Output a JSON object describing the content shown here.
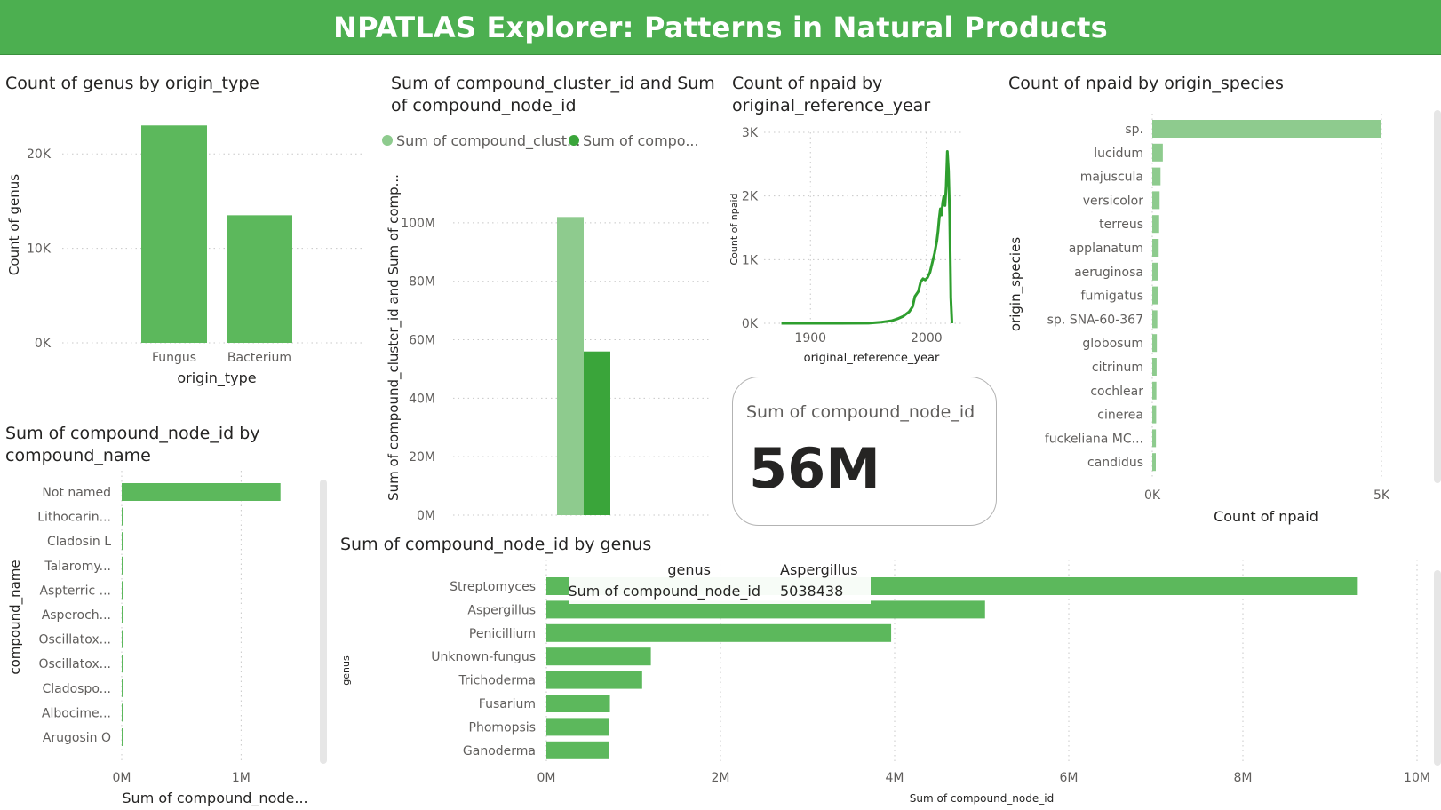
{
  "report": {
    "title": "NPATLAS Explorer: Patterns in Natural Products",
    "theme": {
      "banner": "#4caf50",
      "bar": "#5cb85c",
      "light": "#8ecb8e",
      "dark": "#3aa53a",
      "line": "#2e9e2e"
    }
  },
  "chart_data": [
    {
      "id": "genus_by_origin_type",
      "type": "bar",
      "title": "Count of genus by origin_type",
      "xlabel": "origin_type",
      "ylabel": "Count of genus",
      "categories": [
        "Fungus",
        "Bacterium"
      ],
      "values": [
        23000,
        13500
      ],
      "ylim": [
        0,
        25000
      ],
      "ticks": [
        0,
        10000,
        20000
      ],
      "tick_labels": [
        "0K",
        "10K",
        "20K"
      ],
      "grid": true
    },
    {
      "id": "cluster_and_node_sums",
      "type": "bar",
      "title": "Sum of compound_cluster_id and Sum of compound_node_id",
      "ylabel": "Sum of compound_cluster_id and Sum of comp...",
      "legend": "top",
      "series": [
        {
          "name": "Sum of compound_clust...",
          "values": [
            102000000
          ],
          "color": "#8ecb8e"
        },
        {
          "name": "Sum of compo...",
          "values": [
            56000000
          ],
          "color": "#3aa53a"
        }
      ],
      "ylim": [
        0,
        110000000
      ],
      "ticks": [
        0,
        20000000,
        40000000,
        60000000,
        80000000,
        100000000
      ],
      "tick_labels": [
        "0M",
        "20M",
        "40M",
        "60M",
        "80M",
        "100M"
      ],
      "grid": true
    },
    {
      "id": "npaid_by_year",
      "type": "line",
      "title": "Count of npaid by original_reference_year",
      "xlabel": "original_reference_year",
      "ylabel": "Count of npaid",
      "x": [
        1875,
        1900,
        1925,
        1950,
        1960,
        1970,
        1975,
        1980,
        1985,
        1988,
        1990,
        1993,
        1995,
        1997,
        1999,
        2001,
        2003,
        2005,
        2007,
        2009,
        2010,
        2011,
        2012,
        2013,
        2014,
        2015,
        2016,
        2017,
        2018,
        2019,
        2020,
        2021,
        2022
      ],
      "values": [
        0,
        0,
        0,
        2,
        15,
        40,
        70,
        110,
        180,
        260,
        420,
        500,
        650,
        700,
        680,
        720,
        800,
        950,
        1100,
        1300,
        1450,
        1650,
        1800,
        1700,
        1900,
        2000,
        1850,
        2150,
        2700,
        2400,
        1700,
        400,
        0
      ],
      "xlim": [
        1860,
        2030
      ],
      "ylim": [
        0,
        3000
      ],
      "xticks": [
        1900,
        2000
      ],
      "ticks": [
        0,
        1000,
        2000,
        3000
      ],
      "tick_labels": [
        "0K",
        "1K",
        "2K",
        "3K"
      ],
      "grid": true
    },
    {
      "id": "npaid_by_species",
      "type": "bar",
      "orientation": "horizontal",
      "title": "Count of npaid by origin_species",
      "xlabel": "Count of npaid",
      "ylabel": "origin_species",
      "categories": [
        "sp.",
        "lucidum",
        "majuscula",
        "versicolor",
        "terreus",
        "applanatum",
        "aeruginosa",
        "fumigatus",
        "sp. SNA-60-367",
        "globosum",
        "citrinum",
        "cochlear",
        "cinerea",
        "fuckeliana MC...",
        "candidus"
      ],
      "values": [
        5000,
        230,
        180,
        160,
        150,
        140,
        130,
        120,
        110,
        100,
        95,
        90,
        85,
        80,
        75
      ],
      "xlim": [
        0,
        5000
      ],
      "ticks": [
        0,
        5000
      ],
      "tick_labels": [
        "0K",
        "5K"
      ],
      "grid": true
    },
    {
      "id": "node_by_compound_name",
      "type": "bar",
      "orientation": "horizontal",
      "title": "Sum of compound_node_id by compound_name",
      "xlabel": "Sum of compound_node...",
      "ylabel": "compound_name",
      "categories": [
        "Not named",
        "Lithocarin...",
        "Cladosin L",
        "Talaromy...",
        "Aspterric ...",
        "Asperoch...",
        "Oscillatox...",
        "Oscillatox...",
        "Cladospo...",
        "Albocime...",
        "Arugosin O"
      ],
      "values": [
        1330000,
        12000,
        12000,
        12000,
        12000,
        12000,
        12000,
        12000,
        12000,
        12000,
        12000
      ],
      "xlim": [
        0,
        1600000
      ],
      "ticks": [
        0,
        1000000
      ],
      "tick_labels": [
        "0M",
        "1M"
      ],
      "grid": true
    },
    {
      "id": "node_by_genus",
      "type": "bar",
      "orientation": "horizontal",
      "title": "Sum of compound_node_id by genus",
      "xlabel": "Sum of compound_node_id",
      "ylabel": "genus",
      "categories": [
        "Streptomyces",
        "Aspergillus",
        "Penicillium",
        "Unknown-fungus",
        "Trichoderma",
        "Fusarium",
        "Phomopsis",
        "Ganoderma"
      ],
      "values": [
        9320000,
        5038438,
        3960000,
        1200000,
        1100000,
        730000,
        720000,
        720000
      ],
      "xlim": [
        0,
        10000000
      ],
      "ticks": [
        0,
        2000000,
        4000000,
        6000000,
        8000000,
        10000000
      ],
      "tick_labels": [
        "0M",
        "2M",
        "4M",
        "6M",
        "8M",
        "10M"
      ],
      "grid": true
    }
  ],
  "kpi": {
    "label": "Sum of compound_node_id",
    "value": "56M"
  },
  "tooltip": {
    "row1_label": "genus",
    "row1_value": "Aspergillus",
    "row2_label": "Sum of compound_node_id",
    "row2_value": "5038438"
  }
}
